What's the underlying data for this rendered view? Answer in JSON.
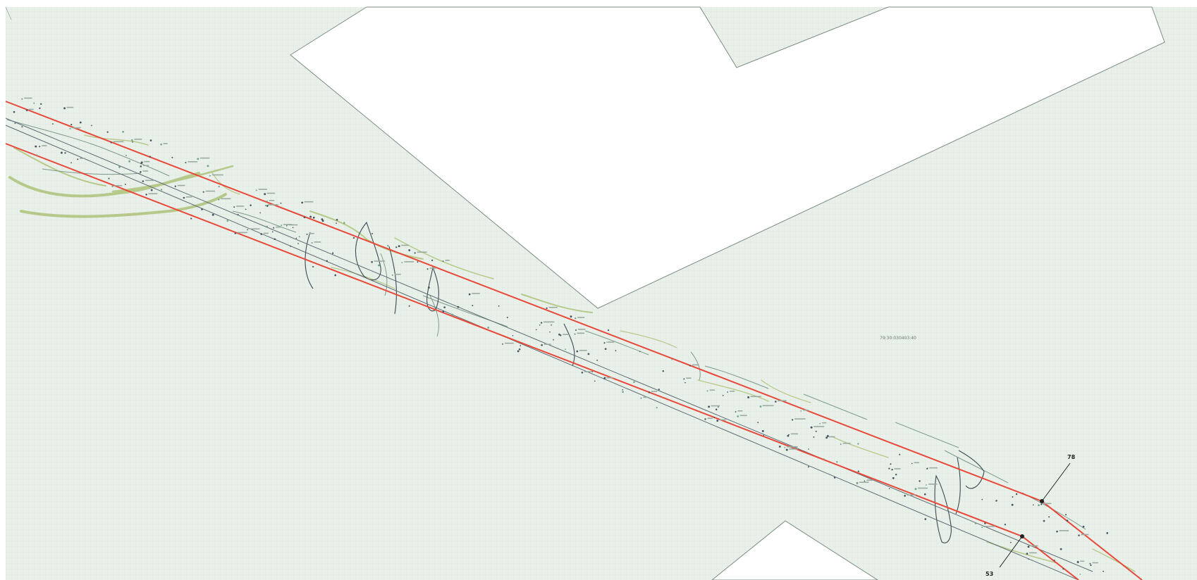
{
  "map": {
    "parcel_number": "79:30:030403:40",
    "boundary_points": [
      {
        "id": "point-78",
        "label": "78"
      },
      {
        "id": "point-53",
        "label": "53"
      }
    ],
    "colors": {
      "sheet_background": "#ffffff",
      "land_fill": "#e8f0e9",
      "grid_line": "#d6e3d8",
      "parcel_border": "#7d8c82",
      "corridor_boundary": "#e8483a",
      "centerline": "#5d6b75",
      "vegetation_contour": "#b7c98a",
      "survey_contour": "#7f9a8a",
      "dark_contour": "#3d4a52",
      "marker": "#222222"
    }
  }
}
